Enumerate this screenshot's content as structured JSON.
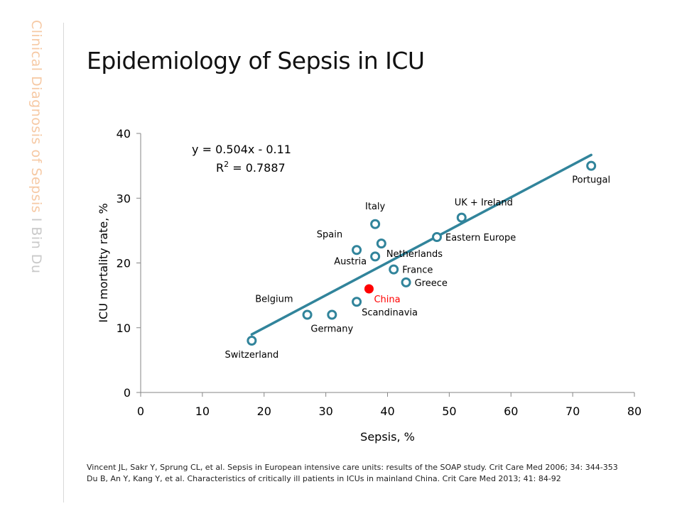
{
  "slide": {
    "side_caption_main": "Clinical Diagnosis of Sepsis",
    "side_caption_sep": " I ",
    "side_caption_author": "Bin Du",
    "title": "Epidemiology of Sepsis in ICU",
    "references": [
      "Vincent JL, Sakr Y, Sprung CL, et al. Sepsis in European intensive care units: results of the SOAP study. Crit Care Med 2006; 34: 344-353",
      "Du B, An Y, Kang Y, et al. Characteristics of critically ill patients in ICUs in mainland China. Crit Care Med 2013; 41: 84-92"
    ]
  },
  "chart_data": {
    "type": "scatter",
    "xlabel": "Sepsis, %",
    "ylabel": "ICU mortality rate, %",
    "xlim": [
      0,
      80
    ],
    "ylim": [
      0,
      40
    ],
    "xticks": [
      0,
      10,
      20,
      30,
      40,
      50,
      60,
      70,
      80
    ],
    "yticks": [
      0,
      10,
      20,
      30,
      40
    ],
    "grid": false,
    "equation": "y = 0.504x - 0.11",
    "r_squared_prefix": "R",
    "r_squared_sup": "2",
    "r_squared_value": " = 0.7887",
    "trendline": {
      "slope": 0.504,
      "intercept": -0.11,
      "x_range": [
        18,
        73
      ]
    },
    "colors": {
      "marker": "#31849b",
      "line": "#31849b",
      "highlight": "#ff0000"
    },
    "points": [
      {
        "label": "Switzerland",
        "x": 18,
        "y": 8,
        "label_pos": "below"
      },
      {
        "label": "Belgium",
        "x": 27,
        "y": 12,
        "label_pos": "upper-left"
      },
      {
        "label": "Germany",
        "x": 31,
        "y": 12,
        "label_pos": "below"
      },
      {
        "label": "Scandinavia",
        "x": 35,
        "y": 14,
        "label_pos": "lower-right"
      },
      {
        "label": "Spain",
        "x": 35,
        "y": 22,
        "label_pos": "upper-left"
      },
      {
        "label": "Austria",
        "x": 38,
        "y": 21,
        "label_pos": "lower-left"
      },
      {
        "label": "Italy",
        "x": 38,
        "y": 26,
        "label_pos": "above"
      },
      {
        "label": "Netherlands",
        "x": 39,
        "y": 23,
        "label_pos": "lower-right"
      },
      {
        "label": "France",
        "x": 41,
        "y": 19,
        "label_pos": "right"
      },
      {
        "label": "Greece",
        "x": 43,
        "y": 17,
        "label_pos": "right"
      },
      {
        "label": "Eastern Europe",
        "x": 48,
        "y": 24,
        "label_pos": "right"
      },
      {
        "label": "UK + Ireland",
        "x": 52,
        "y": 27,
        "label_pos": "upper-right"
      },
      {
        "label": "Portugal",
        "x": 73,
        "y": 35,
        "label_pos": "below"
      },
      {
        "label": "China",
        "x": 37,
        "y": 16,
        "label_pos": "lower-right",
        "highlight": true
      }
    ]
  }
}
